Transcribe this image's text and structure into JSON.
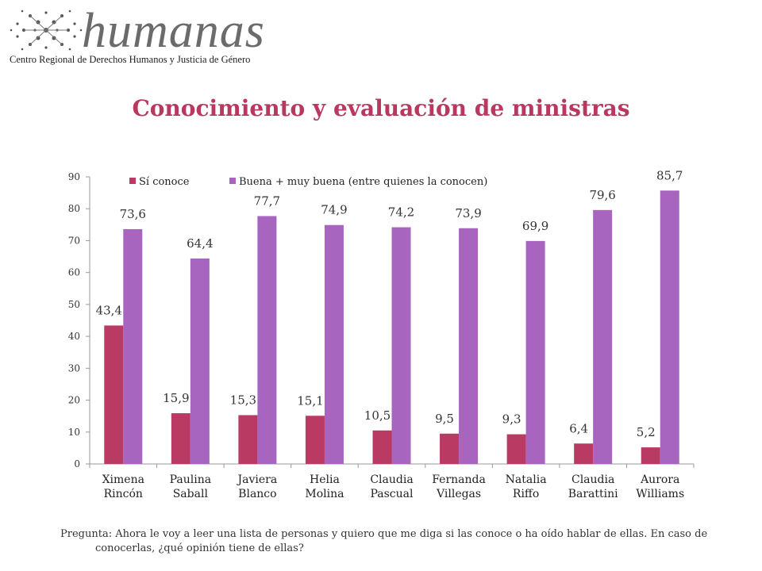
{
  "logo": {
    "wordmark": "humanas",
    "tagline": "Centro Regional de Derechos Humanos y Justicia de Género"
  },
  "page": {
    "title": "Conocimiento y evaluación de ministras",
    "footnote": "Pregunta: Ahora le voy a leer una lista de personas y quiero que me diga si las conoce o ha oído hablar de ellas. En caso de conocerlas, ¿qué opinión tiene de ellas?"
  },
  "chart_data": {
    "type": "bar",
    "categories": [
      [
        "Ximena",
        "Rincón"
      ],
      [
        "Paulina",
        "Saball"
      ],
      [
        "Javiera",
        "Blanco"
      ],
      [
        "Helia",
        "Molina"
      ],
      [
        "Claudia",
        "Pascual"
      ],
      [
        "Fernanda",
        "Villegas"
      ],
      [
        "Natalia",
        "Riffo"
      ],
      [
        "Claudia",
        "Barattini"
      ],
      [
        "Aurora",
        "Williams"
      ]
    ],
    "series": [
      {
        "name": "Sí conoce",
        "color": "#b93a63",
        "values": [
          43.4,
          15.9,
          15.3,
          15.1,
          10.5,
          9.5,
          9.3,
          6.4,
          5.2
        ],
        "labels": [
          "43,4",
          "15,9",
          "15,3",
          "15,1",
          "10,5",
          "9,5",
          "9,3",
          "6,4",
          "5,2"
        ]
      },
      {
        "name": "Buena + muy buena (entre quienes la conocen)",
        "color": "#a765bf",
        "values": [
          73.6,
          64.4,
          77.7,
          74.9,
          74.2,
          73.9,
          69.9,
          79.6,
          85.7
        ],
        "labels": [
          "73,6",
          "64,4",
          "77,7",
          "74,9",
          "74,2",
          "73,9",
          "69,9",
          "79,6",
          "85,7"
        ]
      }
    ],
    "ylim": [
      0,
      90
    ],
    "yticks": [
      0,
      10,
      20,
      30,
      40,
      50,
      60,
      70,
      80,
      90
    ],
    "grid": false,
    "legend": "top-left"
  }
}
